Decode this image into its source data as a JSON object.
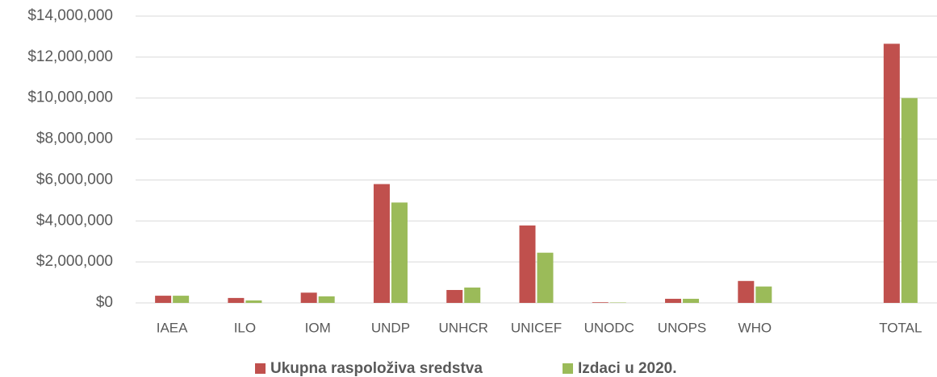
{
  "chart_data": {
    "type": "bar",
    "categories": [
      "IAEA",
      "ILO",
      "IOM",
      "UNDP",
      "UNHCR",
      "UNICEF",
      "UNODC",
      "UNOPS",
      "WHO",
      null,
      "TOTAL"
    ],
    "series": [
      {
        "name": "Ukupna raspoloživa sredstva",
        "color": "#c0504d",
        "values": [
          350000,
          240000,
          500000,
          5800000,
          630000,
          3780000,
          30000,
          200000,
          1070000,
          null,
          12650000
        ]
      },
      {
        "name": "Izdaci u 2020.",
        "color": "#9bbb59",
        "values": [
          350000,
          120000,
          320000,
          4900000,
          750000,
          2450000,
          20000,
          200000,
          800000,
          null,
          10000000
        ]
      }
    ],
    "ylim": [
      0,
      14000000
    ],
    "yticks": [
      {
        "value": 0,
        "label": "$0"
      },
      {
        "value": 2000000,
        "label": "$2,000,000"
      },
      {
        "value": 4000000,
        "label": "$4,000,000"
      },
      {
        "value": 6000000,
        "label": "$6,000,000"
      },
      {
        "value": 8000000,
        "label": "$8,000,000"
      },
      {
        "value": 10000000,
        "label": "$10,000,000"
      },
      {
        "value": 12000000,
        "label": "$12,000,000"
      },
      {
        "value": 14000000,
        "label": "$14,000,000"
      }
    ],
    "grid": true,
    "legend": "bottom"
  }
}
